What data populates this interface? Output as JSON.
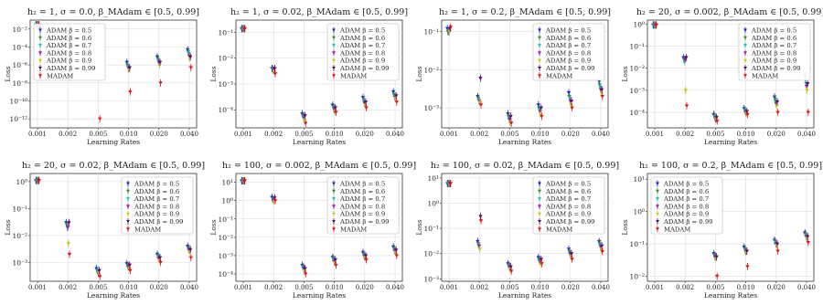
{
  "figure": {
    "colors": {
      "ADAM β = 0.5": "#1f1fcf",
      "ADAM β = 0.6": "#2e8b2e",
      "ADAM β = 0.7": "#17bcbc",
      "ADAM β = 0.8": "#a014b4",
      "ADAM β = 0.9": "#c8c814",
      "ADAM β = 0.99": "#5a0a6e",
      "MADAM": "#e01414"
    }
  },
  "chart_data": [
    {
      "type": "scatter",
      "title": "h₂ = 1, σ = 0.0, β_MAdam ∈ [0.5, 0.99]",
      "xlabel": "Learning Rates",
      "ylabel": "Loss",
      "log_y": true,
      "ylim": [
        1e-13,
        0.1
      ],
      "yticks": [
        1e-12,
        1e-10,
        1e-08,
        1e-06,
        0.0001,
        0.01
      ],
      "ytick_labels": [
        "10⁻¹²",
        "10⁻¹⁰",
        "10⁻⁸",
        "10⁻⁶",
        "10⁻⁴",
        "10⁻²"
      ],
      "categories": [
        "0.001",
        "0.002",
        "0.005",
        "0.010",
        "0.020",
        "0.040"
      ],
      "legend": "upper-left",
      "grid": true,
      "series": [
        {
          "name": "ADAM β = 0.5",
          "values": [
            0.03,
            0.0015,
            null,
            2e-06,
            8e-06,
            5e-05
          ]
        },
        {
          "name": "ADAM β = 0.6",
          "values": [
            0.03,
            0.0012,
            null,
            1e-06,
            5e-06,
            3e-05
          ]
        },
        {
          "name": "ADAM β = 0.7",
          "values": [
            0.03,
            0.001,
            null,
            6e-07,
            3e-06,
            2e-05
          ]
        },
        {
          "name": "ADAM β = 0.8",
          "values": [
            0.03,
            0.0008,
            null,
            4e-07,
            2e-06,
            1e-05
          ]
        },
        {
          "name": "ADAM β = 0.9",
          "values": [
            0.03,
            0.0006,
            null,
            3e-07,
            1e-06,
            6e-06
          ]
        },
        {
          "name": "ADAM β = 0.99",
          "values": [
            0.03,
            0.002,
            null,
            5e-07,
            2e-06,
            8e-06
          ]
        },
        {
          "name": "MADAM",
          "values": [
            0.03,
            0.0003,
            1e-12,
            1e-09,
            1e-08,
            5e-07
          ]
        }
      ]
    },
    {
      "type": "scatter",
      "title": "h₂ = 1, σ = 0.02, β_MAdam ∈ [0.5, 0.99]",
      "xlabel": "Learning Rates",
      "ylabel": "Loss",
      "log_y": true,
      "ylim": [
        2e-05,
        0.3
      ],
      "yticks": [
        0.0001,
        0.001,
        0.01,
        0.1
      ],
      "ytick_labels": [
        "10⁻⁴",
        "10⁻³",
        "10⁻²",
        "10⁻¹"
      ],
      "categories": [
        "0.001",
        "0.002",
        "0.005",
        "0.010",
        "0.020",
        "0.040"
      ],
      "legend": "upper-right",
      "grid": true,
      "series": [
        {
          "name": "ADAM β = 0.5",
          "values": [
            0.14,
            0.004,
            7e-05,
            0.00015,
            0.0003,
            0.0005
          ]
        },
        {
          "name": "ADAM β = 0.6",
          "values": [
            0.14,
            0.004,
            6e-05,
            0.00013,
            0.00025,
            0.0004
          ]
        },
        {
          "name": "ADAM β = 0.7",
          "values": [
            0.14,
            0.0035,
            5e-05,
            0.00011,
            0.0002,
            0.00035
          ]
        },
        {
          "name": "ADAM β = 0.8",
          "values": [
            0.14,
            0.0035,
            5e-05,
            0.0001,
            0.00018,
            0.0003
          ]
        },
        {
          "name": "ADAM β = 0.9",
          "values": [
            0.14,
            0.003,
            4e-05,
            9e-05,
            0.00015,
            0.00028
          ]
        },
        {
          "name": "ADAM β = 0.99",
          "values": [
            0.14,
            0.004,
            6e-05,
            0.00012,
            0.0002,
            0.00035
          ]
        },
        {
          "name": "MADAM",
          "values": [
            0.14,
            0.0025,
            3e-05,
            8e-05,
            0.00012,
            0.0002
          ]
        }
      ]
    },
    {
      "type": "scatter",
      "title": "h₂ = 1, σ = 0.2, β_MAdam ∈ [0.5, 0.99]",
      "xlabel": "Learning Rates",
      "ylabel": "Loss",
      "log_y": true,
      "ylim": [
        0.0003,
        0.2
      ],
      "yticks": [
        0.001,
        0.01,
        0.1
      ],
      "ytick_labels": [
        "10⁻³",
        "10⁻²",
        "10⁻¹"
      ],
      "categories": [
        "0.001",
        "0.002",
        "0.005",
        "0.010",
        "0.020",
        "0.040"
      ],
      "legend": "upper-right",
      "grid": true,
      "series": [
        {
          "name": "ADAM β = 0.5",
          "values": [
            0.12,
            0.002,
            0.0007,
            0.0012,
            0.0025,
            0.005
          ]
        },
        {
          "name": "ADAM β = 0.6",
          "values": [
            0.1,
            0.0018,
            0.0006,
            0.001,
            0.002,
            0.004
          ]
        },
        {
          "name": "ADAM β = 0.7",
          "values": [
            0.1,
            0.0016,
            0.0005,
            0.0009,
            0.0018,
            0.0035
          ]
        },
        {
          "name": "ADAM β = 0.8",
          "values": [
            0.1,
            0.0015,
            0.0005,
            0.0008,
            0.0015,
            0.003
          ]
        },
        {
          "name": "ADAM β = 0.9",
          "values": [
            0.1,
            0.0014,
            0.0004,
            0.0007,
            0.0012,
            0.0025
          ]
        },
        {
          "name": "ADAM β = 0.99",
          "values": [
            0.12,
            0.006,
            0.0006,
            0.001,
            0.0015,
            0.003
          ]
        },
        {
          "name": "MADAM",
          "values": [
            0.13,
            0.0012,
            0.0004,
            0.0006,
            0.001,
            0.002
          ]
        }
      ]
    },
    {
      "type": "scatter",
      "title": "h₂ = 20, σ = 0.002, β_MAdam ∈ [0.5, 0.99]",
      "xlabel": "Learning Rates",
      "ylabel": "Loss",
      "log_y": true,
      "ylim": [
        2e-05,
        1.5
      ],
      "yticks": [
        0.0001,
        0.001,
        0.01,
        0.1,
        1
      ],
      "ytick_labels": [
        "10⁻⁴",
        "10⁻³",
        "10⁻²",
        "10⁻¹",
        "10⁰"
      ],
      "categories": [
        "0.001",
        "0.002",
        "0.005",
        "0.010",
        "0.020",
        "0.040"
      ],
      "legend": "upper-right",
      "grid": true,
      "series": [
        {
          "name": "ADAM β = 0.5",
          "values": [
            0.9,
            0.03,
            8e-05,
            0.00015,
            0.0005,
            0.005
          ]
        },
        {
          "name": "ADAM β = 0.6",
          "values": [
            0.9,
            0.025,
            7e-05,
            0.00013,
            0.0004,
            0.003
          ]
        },
        {
          "name": "ADAM β = 0.7",
          "values": [
            0.9,
            0.02,
            6e-05,
            0.00012,
            0.0003,
            0.002
          ]
        },
        {
          "name": "ADAM β = 0.8",
          "values": [
            0.9,
            0.025,
            5e-05,
            0.0001,
            0.00025,
            0.0015
          ]
        },
        {
          "name": "ADAM β = 0.9",
          "values": [
            0.9,
            0.001,
            5e-05,
            9e-05,
            0.0002,
            0.001
          ]
        },
        {
          "name": "ADAM β = 0.99",
          "values": [
            0.9,
            0.03,
            6e-05,
            0.00011,
            0.0003,
            0.002
          ]
        },
        {
          "name": "MADAM",
          "values": [
            0.9,
            0.0002,
            4e-05,
            8e-05,
            0.0001,
            0.0001
          ]
        }
      ]
    },
    {
      "type": "scatter",
      "title": "h₂ = 20, σ = 0.02, β_MAdam ∈ [0.5, 0.99]",
      "xlabel": "Learning Rates",
      "ylabel": "Loss",
      "log_y": true,
      "ylim": [
        0.0002,
        2
      ],
      "yticks": [
        0.001,
        0.01,
        0.1,
        1
      ],
      "ytick_labels": [
        "10⁻³",
        "10⁻²",
        "10⁻¹",
        "10⁰"
      ],
      "categories": [
        "0.001",
        "0.002",
        "0.005",
        "0.010",
        "0.020",
        "0.040"
      ],
      "legend": "upper-right",
      "grid": true,
      "series": [
        {
          "name": "ADAM β = 0.5",
          "values": [
            1.1,
            0.03,
            0.0006,
            0.0009,
            0.002,
            0.004
          ]
        },
        {
          "name": "ADAM β = 0.6",
          "values": [
            1.1,
            0.025,
            0.0005,
            0.0008,
            0.0018,
            0.0035
          ]
        },
        {
          "name": "ADAM β = 0.7",
          "values": [
            1.1,
            0.02,
            0.0005,
            0.0007,
            0.0016,
            0.003
          ]
        },
        {
          "name": "ADAM β = 0.8",
          "values": [
            1.1,
            0.02,
            0.0004,
            0.0007,
            0.0014,
            0.003
          ]
        },
        {
          "name": "ADAM β = 0.9",
          "values": [
            1.1,
            0.005,
            0.0004,
            0.0006,
            0.0012,
            0.0025
          ]
        },
        {
          "name": "ADAM β = 0.99",
          "values": [
            1.1,
            0.03,
            0.0005,
            0.0008,
            0.0015,
            0.003
          ]
        },
        {
          "name": "MADAM",
          "values": [
            1.1,
            0.002,
            0.0003,
            0.0005,
            0.001,
            0.0015
          ]
        }
      ]
    },
    {
      "type": "scatter",
      "title": "h₂ = 100, σ = 0.002, β_MAdam ∈ [0.5, 0.99]",
      "xlabel": "Learning Rates",
      "ylabel": "Loss",
      "log_y": true,
      "ylim": [
        4e-05,
        30
      ],
      "yticks": [
        0.0001,
        0.001,
        0.01,
        0.1,
        1,
        10
      ],
      "ytick_labels": [
        "10⁻⁴",
        "10⁻³",
        "10⁻²",
        "10⁻¹",
        "10⁰",
        "10¹"
      ],
      "categories": [
        "0.001",
        "0.002",
        "0.005",
        "0.010",
        "0.020",
        "0.040"
      ],
      "legend": "upper-right",
      "grid": true,
      "series": [
        {
          "name": "ADAM β = 0.5",
          "values": [
            12,
            1.5,
            0.0003,
            0.0008,
            0.0015,
            0.003
          ]
        },
        {
          "name": "ADAM β = 0.6",
          "values": [
            12,
            1.3,
            0.00025,
            0.0007,
            0.0012,
            0.0025
          ]
        },
        {
          "name": "ADAM β = 0.7",
          "values": [
            12,
            1.2,
            0.0002,
            0.0006,
            0.001,
            0.002
          ]
        },
        {
          "name": "ADAM β = 0.8",
          "values": [
            12,
            1.1,
            0.0002,
            0.0005,
            0.0009,
            0.0018
          ]
        },
        {
          "name": "ADAM β = 0.9",
          "values": [
            12,
            0.9,
            0.00015,
            0.0004,
            0.0008,
            0.0015
          ]
        },
        {
          "name": "ADAM β = 0.99",
          "values": [
            12,
            1.4,
            0.0002,
            0.0006,
            0.001,
            0.002
          ]
        },
        {
          "name": "MADAM",
          "values": [
            12,
            1.0,
            0.0001,
            0.0003,
            0.0006,
            0.001
          ]
        }
      ]
    },
    {
      "type": "scatter",
      "title": "h₂ = 100, σ = 0.02, β_MAdam ∈ [0.5, 0.99]",
      "xlabel": "Learning Rates",
      "ylabel": "Loss",
      "log_y": true,
      "ylim": [
        0.0008,
        15
      ],
      "yticks": [
        0.001,
        0.01,
        0.1,
        1,
        10
      ],
      "ytick_labels": [
        "10⁻³",
        "10⁻²",
        "10⁻¹",
        "10⁰",
        "10¹"
      ],
      "categories": [
        "0.001",
        "0.002",
        "0.005",
        "0.010",
        "0.020",
        "0.040"
      ],
      "legend": "upper-right",
      "grid": true,
      "series": [
        {
          "name": "ADAM β = 0.5",
          "values": [
            6,
            0.03,
            0.004,
            0.007,
            0.015,
            0.03
          ]
        },
        {
          "name": "ADAM β = 0.6",
          "values": [
            6,
            0.025,
            0.0035,
            0.006,
            0.012,
            0.025
          ]
        },
        {
          "name": "ADAM β = 0.7",
          "values": [
            6,
            0.02,
            0.003,
            0.005,
            0.01,
            0.02
          ]
        },
        {
          "name": "ADAM β = 0.8",
          "values": [
            6,
            0.02,
            0.003,
            0.005,
            0.01,
            0.018
          ]
        },
        {
          "name": "ADAM β = 0.9",
          "values": [
            6,
            0.015,
            0.0025,
            0.004,
            0.008,
            0.015
          ]
        },
        {
          "name": "ADAM β = 0.99",
          "values": [
            6,
            0.3,
            0.003,
            0.006,
            0.01,
            0.02
          ]
        },
        {
          "name": "MADAM",
          "values": [
            6,
            0.2,
            0.002,
            0.004,
            0.006,
            0.012
          ]
        }
      ]
    },
    {
      "type": "scatter",
      "title": "h₂ = 100, σ = 0.2, β_MAdam ∈ [0.5, 0.99]",
      "xlabel": "Learning Rates",
      "ylabel": "Loss",
      "log_y": true,
      "ylim": [
        0.007,
        15
      ],
      "yticks": [
        0.01,
        0.1,
        1,
        10
      ],
      "ytick_labels": [
        "10⁻²",
        "10⁻¹",
        "10⁰",
        "10¹"
      ],
      "categories": [
        "0.001",
        "0.002",
        "0.005",
        "0.010",
        "0.020",
        "0.040"
      ],
      "legend": "upper-left",
      "grid": true,
      "series": [
        {
          "name": "ADAM β = 0.5",
          "values": [
            8,
            0.8,
            0.05,
            0.08,
            0.13,
            0.22
          ]
        },
        {
          "name": "ADAM β = 0.6",
          "values": [
            8,
            0.7,
            0.045,
            0.07,
            0.12,
            0.2
          ]
        },
        {
          "name": "ADAM β = 0.7",
          "values": [
            8,
            0.6,
            0.04,
            0.065,
            0.11,
            0.18
          ]
        },
        {
          "name": "ADAM β = 0.8",
          "values": [
            8,
            0.5,
            0.04,
            0.06,
            0.1,
            0.16
          ]
        },
        {
          "name": "ADAM β = 0.9",
          "values": [
            8,
            0.5,
            0.035,
            0.055,
            0.09,
            0.15
          ]
        },
        {
          "name": "ADAM β = 0.99",
          "values": [
            8,
            0.9,
            0.04,
            0.06,
            0.1,
            0.17
          ]
        },
        {
          "name": "MADAM",
          "values": [
            8,
            0.4,
            0.01,
            0.02,
            0.06,
            0.11
          ]
        }
      ]
    }
  ]
}
